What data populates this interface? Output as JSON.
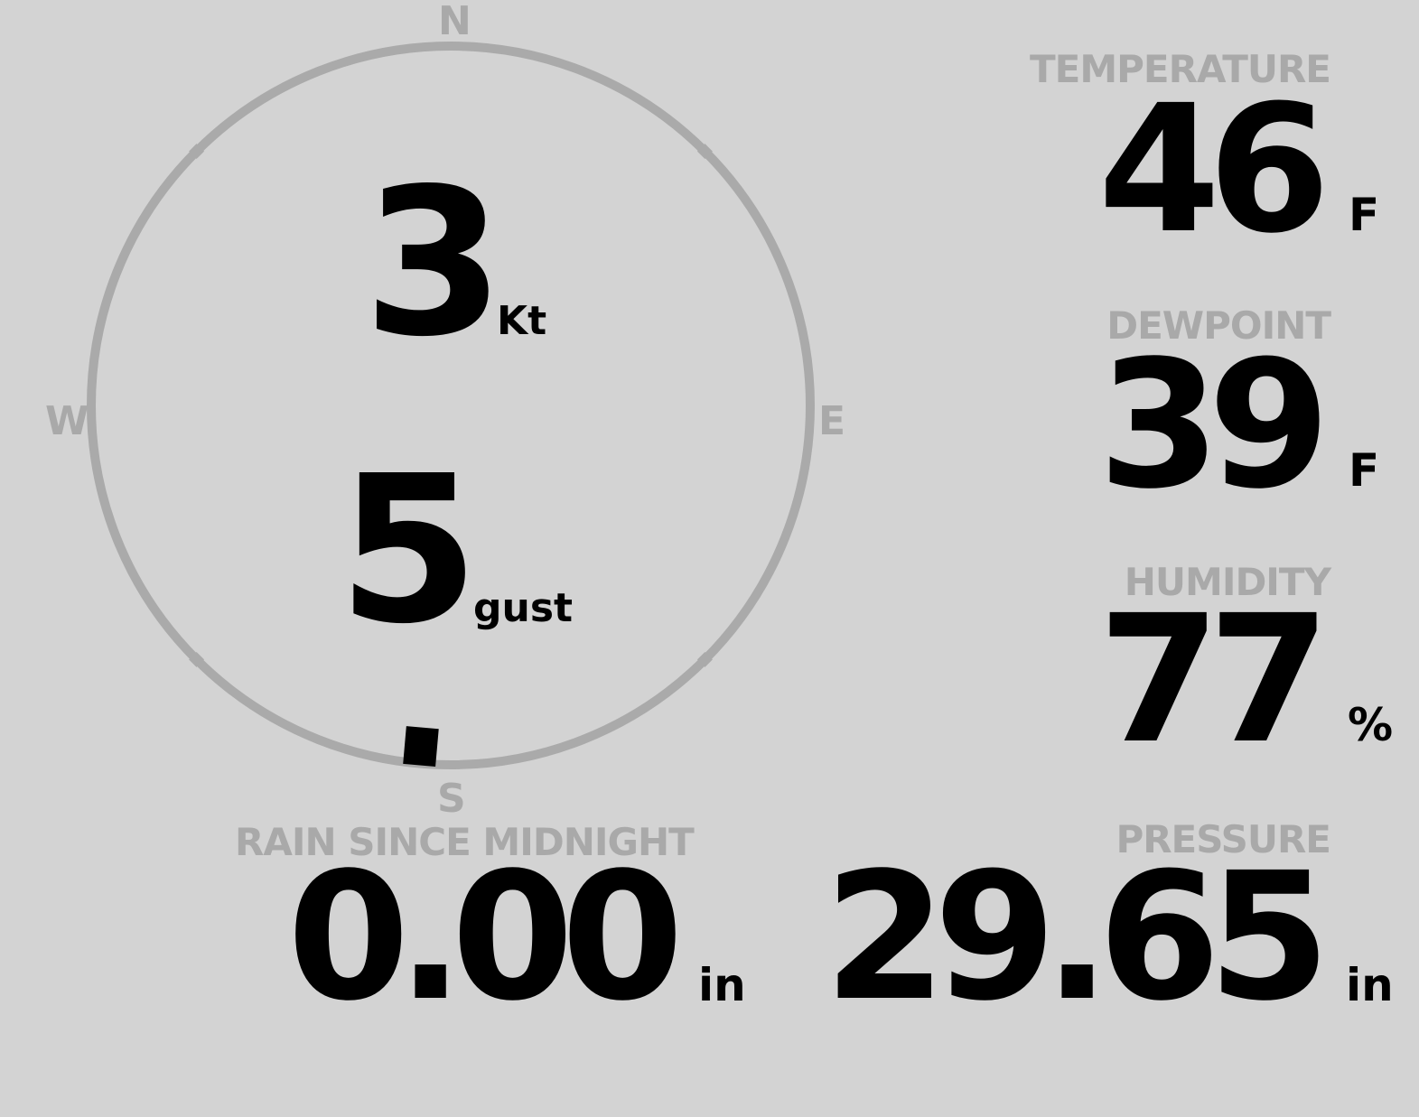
{
  "colors": {
    "background": "#d3d3d3",
    "label": "#a9a9a9",
    "value": "#000000",
    "dial": "#aaaaaa"
  },
  "wind": {
    "compass": {
      "n": "N",
      "e": "E",
      "s": "S",
      "w": "W"
    },
    "direction_deg": 185,
    "speed": "3",
    "speed_unit": "Kt",
    "gust": "5",
    "gust_unit": "gust"
  },
  "temperature": {
    "label": "TEMPERATURE",
    "value": "46",
    "unit": "F"
  },
  "dewpoint": {
    "label": "DEWPOINT",
    "value": "39",
    "unit": "F"
  },
  "humidity": {
    "label": "HUMIDITY",
    "value": "77",
    "unit": "%"
  },
  "pressure": {
    "label": "PRESSURE",
    "value": "29.65",
    "unit": "in"
  },
  "rain": {
    "label": "RAIN SINCE MIDNIGHT",
    "value": "0.00",
    "unit": "in"
  }
}
